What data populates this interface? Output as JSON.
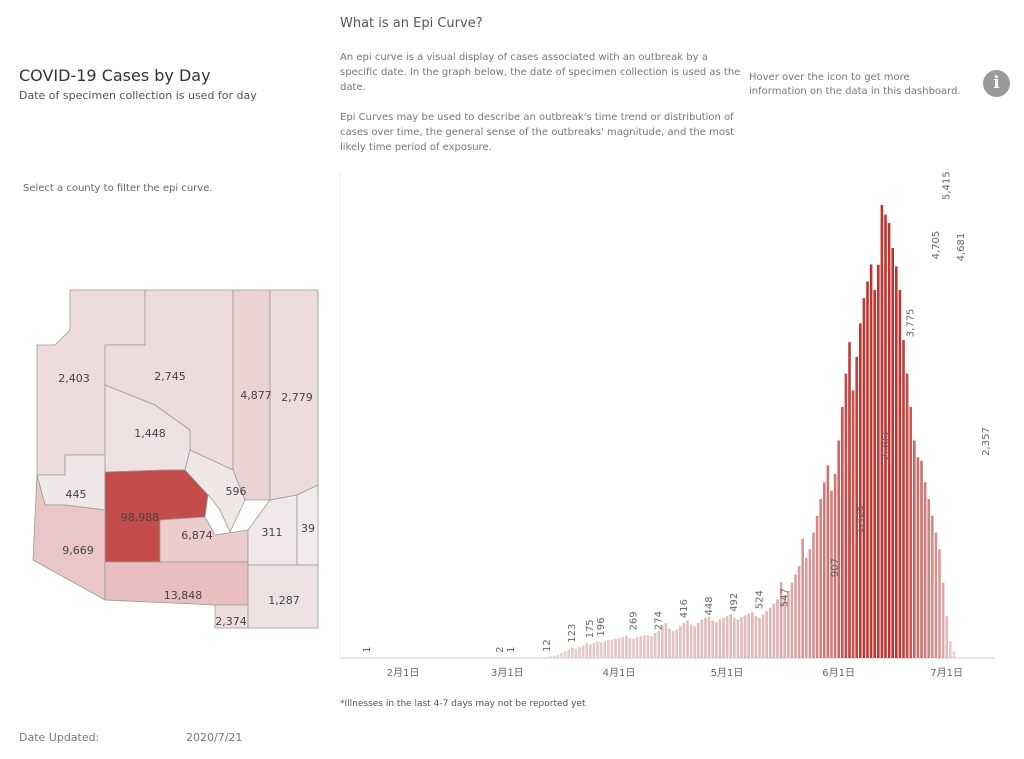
{
  "header": {
    "title": "COVID-19 Cases by Day",
    "subtitle": "Date of specimen collection is used for day"
  },
  "epi_info": {
    "heading": "What is an Epi Curve?",
    "paragraph_1": "An epi curve is a visual display of cases associated with an outbreak by a specific date. In the graph below, the date of specimen collection is used as the date.",
    "paragraph_2": "Epi Curves may be used to describe an outbreak's time trend or distribution of cases over time, the general sense of the outbreaks' magnitude, and the most likely time period of exposure."
  },
  "info": {
    "hint": "Hover over the icon to get more information on the data in this dashboard.",
    "icon": "info-icon",
    "icon_glyph": "i"
  },
  "map": {
    "filter_hint": "Select a county to filter the epi curve.",
    "counties": [
      {
        "id": "mohave",
        "value": 2403,
        "label": "2,403"
      },
      {
        "id": "coconino",
        "value": 2745,
        "label": "2,745"
      },
      {
        "id": "yavapai",
        "value": 1448,
        "label": "1,448"
      },
      {
        "id": "navajo",
        "value": 4877,
        "label": "4,877"
      },
      {
        "id": "apache",
        "value": 2779,
        "label": "2,779"
      },
      {
        "id": "la-paz",
        "value": 445,
        "label": "445"
      },
      {
        "id": "maricopa",
        "value": 98988,
        "label": "98,988"
      },
      {
        "id": "gila",
        "value": 596,
        "label": "596"
      },
      {
        "id": "yuma",
        "value": 9669,
        "label": "9,669"
      },
      {
        "id": "pinal",
        "value": 6874,
        "label": "6,874"
      },
      {
        "id": "graham",
        "value": 311,
        "label": "311"
      },
      {
        "id": "greenlee",
        "value": 39,
        "label": "39"
      },
      {
        "id": "pima",
        "value": 13848,
        "label": "13,848"
      },
      {
        "id": "santa-cruz",
        "value": 2374,
        "label": "2,374"
      },
      {
        "id": "cochise",
        "value": 1287,
        "label": "1,287"
      }
    ]
  },
  "chart_data": {
    "type": "bar",
    "x_start": "2020-01-22",
    "x_end": "2020-07-21",
    "tick_labels": [
      "2月1日",
      "3月1日",
      "4月1日",
      "5月1日",
      "6月1日",
      "7月1日"
    ],
    "labeled_bars": [
      {
        "date": "2020-01-22",
        "value": 1,
        "label": "1"
      },
      {
        "date": "2020-02-28",
        "value": 2,
        "label": "2"
      },
      {
        "date": "2020-03-02",
        "value": 1,
        "label": "1"
      },
      {
        "date": "2020-03-12",
        "value": 12,
        "label": "12"
      },
      {
        "date": "2020-03-19",
        "value": 123,
        "label": "123"
      },
      {
        "date": "2020-03-24",
        "value": 175,
        "label": "175"
      },
      {
        "date": "2020-03-27",
        "value": 196,
        "label": "196"
      },
      {
        "date": "2020-04-05",
        "value": 269,
        "label": "269"
      },
      {
        "date": "2020-04-12",
        "value": 274,
        "label": "274"
      },
      {
        "date": "2020-04-19",
        "value": 416,
        "label": "416"
      },
      {
        "date": "2020-04-26",
        "value": 448,
        "label": "448"
      },
      {
        "date": "2020-05-03",
        "value": 492,
        "label": "492"
      },
      {
        "date": "2020-05-10",
        "value": 524,
        "label": "524"
      },
      {
        "date": "2020-05-17",
        "value": 547,
        "label": "547"
      },
      {
        "date": "2020-05-31",
        "value": 907,
        "label": "907"
      },
      {
        "date": "2020-06-07",
        "value": 1426,
        "label": "1,426"
      },
      {
        "date": "2020-06-14",
        "value": 2303,
        "label": "2,303"
      },
      {
        "date": "2020-06-21",
        "value": 3775,
        "label": "3,775"
      },
      {
        "date": "2020-06-28",
        "value": 4705,
        "label": "4,705"
      },
      {
        "date": "2020-07-01",
        "value": 5415,
        "label": "5,415"
      },
      {
        "date": "2020-07-05",
        "value": 4681,
        "label": "4,681"
      },
      {
        "date": "2020-07-12",
        "value": 2357,
        "label": "2,357"
      }
    ],
    "daily_values": [
      1,
      0,
      0,
      0,
      0,
      0,
      0,
      0,
      0,
      0,
      0,
      0,
      0,
      0,
      0,
      0,
      0,
      0,
      0,
      0,
      0,
      0,
      0,
      0,
      0,
      0,
      0,
      0,
      0,
      0,
      0,
      0,
      0,
      0,
      0,
      0,
      0,
      2,
      0,
      0,
      1,
      0,
      0,
      0,
      0,
      0,
      0,
      0,
      0,
      0,
      12,
      20,
      28,
      40,
      60,
      80,
      100,
      123,
      110,
      130,
      150,
      175,
      165,
      180,
      196,
      185,
      200,
      210,
      220,
      230,
      240,
      250,
      269,
      240,
      230,
      250,
      260,
      270,
      274,
      260,
      300,
      320,
      380,
      416,
      350,
      320,
      340,
      380,
      420,
      448,
      400,
      380,
      420,
      460,
      480,
      492,
      450,
      430,
      460,
      480,
      500,
      524,
      480,
      460,
      490,
      510,
      530,
      547,
      500,
      480,
      520,
      560,
      600,
      650,
      700,
      907,
      750,
      800,
      900,
      1000,
      1100,
      1426,
      1200,
      1300,
      1500,
      1700,
      1900,
      2100,
      2303,
      2000,
      2200,
      2600,
      3000,
      3400,
      3775,
      3200,
      3600,
      4000,
      4300,
      4500,
      4705,
      4400,
      4700,
      5415,
      5300,
      5200,
      4900,
      4681,
      4400,
      3800,
      3400,
      3000,
      2600,
      2400,
      2357,
      2100,
      1900,
      1700,
      1500,
      1300,
      900,
      500,
      200,
      80
    ],
    "ylim": [
      0,
      5600
    ],
    "color_low": "#e6d3d3",
    "color_high": "#c0342f"
  },
  "footer": {
    "footnote": "*Illnesses in the last 4-7 days may not be reported yet",
    "date_updated_label": "Date Updated:",
    "date_updated_value": "2020/7/21"
  },
  "colors": {
    "map_low": "#f1ebeb",
    "map_high": "#c34b4a",
    "map_border": "#9a9a9a"
  }
}
